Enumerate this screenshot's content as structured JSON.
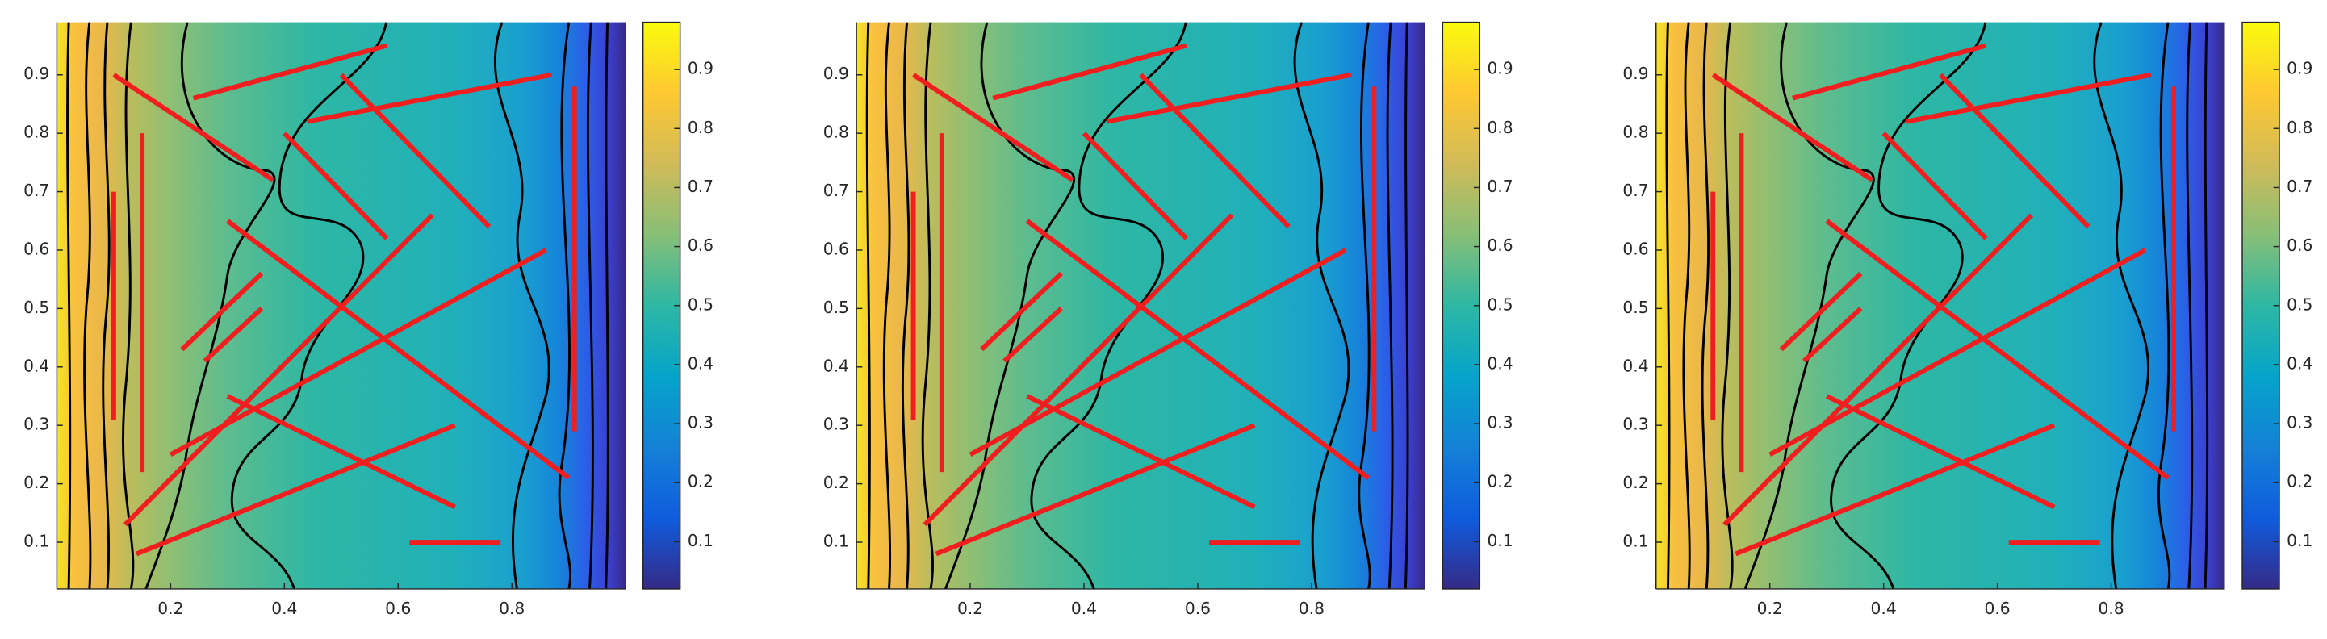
{
  "chart_data": [
    {
      "type": "field",
      "xlim": [
        0,
        1
      ],
      "ylim": [
        0.02,
        0.99
      ],
      "xticks": [
        0.2,
        0.4,
        0.6,
        0.8
      ],
      "yticks": [
        0.1,
        0.2,
        0.3,
        0.4,
        0.5,
        0.6,
        0.7,
        0.8,
        0.9
      ],
      "clim": [
        0.02,
        0.98
      ],
      "cticks": [
        0.1,
        0.2,
        0.3,
        0.4,
        0.5,
        0.6,
        0.7,
        0.8,
        0.9
      ],
      "segment_color": "#f01e1e",
      "segments": [
        {
          "x": [
            0.1,
            0.38
          ],
          "y": [
            0.9,
            0.72
          ]
        },
        {
          "x": [
            0.24,
            0.58
          ],
          "y": [
            0.86,
            0.95
          ]
        },
        {
          "x": [
            0.44,
            0.87
          ],
          "y": [
            0.82,
            0.9
          ]
        },
        {
          "x": [
            0.5,
            0.76
          ],
          "y": [
            0.9,
            0.64
          ]
        },
        {
          "x": [
            0.4,
            0.58
          ],
          "y": [
            0.8,
            0.62
          ]
        },
        {
          "x": [
            0.1,
            0.1
          ],
          "y": [
            0.7,
            0.31
          ]
        },
        {
          "x": [
            0.15,
            0.15
          ],
          "y": [
            0.8,
            0.22
          ]
        },
        {
          "x": [
            0.91,
            0.91
          ],
          "y": [
            0.88,
            0.29
          ]
        },
        {
          "x": [
            0.3,
            0.9
          ],
          "y": [
            0.65,
            0.21
          ]
        },
        {
          "x": [
            0.22,
            0.36
          ],
          "y": [
            0.43,
            0.56
          ]
        },
        {
          "x": [
            0.26,
            0.36
          ],
          "y": [
            0.41,
            0.5
          ]
        },
        {
          "x": [
            0.2,
            0.86
          ],
          "y": [
            0.25,
            0.6
          ]
        },
        {
          "x": [
            0.12,
            0.66
          ],
          "y": [
            0.13,
            0.66
          ]
        },
        {
          "x": [
            0.3,
            0.7
          ],
          "y": [
            0.35,
            0.16
          ]
        },
        {
          "x": [
            0.14,
            0.7
          ],
          "y": [
            0.08,
            0.3
          ]
        },
        {
          "x": [
            0.62,
            0.78
          ],
          "y": [
            0.1,
            0.1
          ]
        }
      ]
    },
    {
      "type": "field",
      "xlim": [
        0,
        1
      ],
      "ylim": [
        0.02,
        0.99
      ],
      "xticks": [
        0.2,
        0.4,
        0.6,
        0.8
      ],
      "yticks": [
        0.1,
        0.2,
        0.3,
        0.4,
        0.5,
        0.6,
        0.7,
        0.8,
        0.9
      ],
      "clim": [
        0.02,
        0.98
      ],
      "cticks": [
        0.1,
        0.2,
        0.3,
        0.4,
        0.5,
        0.6,
        0.7,
        0.8,
        0.9
      ],
      "segment_color": "#f01e1e",
      "segments": [
        {
          "x": [
            0.1,
            0.38
          ],
          "y": [
            0.9,
            0.72
          ]
        },
        {
          "x": [
            0.24,
            0.58
          ],
          "y": [
            0.86,
            0.95
          ]
        },
        {
          "x": [
            0.44,
            0.87
          ],
          "y": [
            0.82,
            0.9
          ]
        },
        {
          "x": [
            0.5,
            0.76
          ],
          "y": [
            0.9,
            0.64
          ]
        },
        {
          "x": [
            0.4,
            0.58
          ],
          "y": [
            0.8,
            0.62
          ]
        },
        {
          "x": [
            0.1,
            0.1
          ],
          "y": [
            0.7,
            0.31
          ]
        },
        {
          "x": [
            0.15,
            0.15
          ],
          "y": [
            0.8,
            0.22
          ]
        },
        {
          "x": [
            0.91,
            0.91
          ],
          "y": [
            0.88,
            0.29
          ]
        },
        {
          "x": [
            0.3,
            0.9
          ],
          "y": [
            0.65,
            0.21
          ]
        },
        {
          "x": [
            0.22,
            0.36
          ],
          "y": [
            0.43,
            0.56
          ]
        },
        {
          "x": [
            0.26,
            0.36
          ],
          "y": [
            0.41,
            0.5
          ]
        },
        {
          "x": [
            0.2,
            0.86
          ],
          "y": [
            0.25,
            0.6
          ]
        },
        {
          "x": [
            0.12,
            0.66
          ],
          "y": [
            0.13,
            0.66
          ]
        },
        {
          "x": [
            0.3,
            0.7
          ],
          "y": [
            0.35,
            0.16
          ]
        },
        {
          "x": [
            0.14,
            0.7
          ],
          "y": [
            0.08,
            0.3
          ]
        },
        {
          "x": [
            0.62,
            0.78
          ],
          "y": [
            0.1,
            0.1
          ]
        }
      ]
    },
    {
      "type": "field",
      "xlim": [
        0,
        1
      ],
      "ylim": [
        0.02,
        0.99
      ],
      "xticks": [
        0.2,
        0.4,
        0.6,
        0.8
      ],
      "yticks": [
        0.1,
        0.2,
        0.3,
        0.4,
        0.5,
        0.6,
        0.7,
        0.8,
        0.9
      ],
      "clim": [
        0.02,
        0.98
      ],
      "cticks": [
        0.1,
        0.2,
        0.3,
        0.4,
        0.5,
        0.6,
        0.7,
        0.8,
        0.9
      ],
      "segment_color": "#f01e1e",
      "segments": [
        {
          "x": [
            0.1,
            0.38
          ],
          "y": [
            0.9,
            0.72
          ]
        },
        {
          "x": [
            0.24,
            0.58
          ],
          "y": [
            0.86,
            0.95
          ]
        },
        {
          "x": [
            0.44,
            0.87
          ],
          "y": [
            0.82,
            0.9
          ]
        },
        {
          "x": [
            0.5,
            0.76
          ],
          "y": [
            0.9,
            0.64
          ]
        },
        {
          "x": [
            0.4,
            0.58
          ],
          "y": [
            0.8,
            0.62
          ]
        },
        {
          "x": [
            0.1,
            0.1
          ],
          "y": [
            0.7,
            0.31
          ]
        },
        {
          "x": [
            0.15,
            0.15
          ],
          "y": [
            0.8,
            0.22
          ]
        },
        {
          "x": [
            0.91,
            0.91
          ],
          "y": [
            0.88,
            0.29
          ]
        },
        {
          "x": [
            0.3,
            0.9
          ],
          "y": [
            0.65,
            0.21
          ]
        },
        {
          "x": [
            0.22,
            0.36
          ],
          "y": [
            0.43,
            0.56
          ]
        },
        {
          "x": [
            0.26,
            0.36
          ],
          "y": [
            0.41,
            0.5
          ]
        },
        {
          "x": [
            0.2,
            0.86
          ],
          "y": [
            0.25,
            0.6
          ]
        },
        {
          "x": [
            0.12,
            0.66
          ],
          "y": [
            0.13,
            0.66
          ]
        },
        {
          "x": [
            0.3,
            0.7
          ],
          "y": [
            0.35,
            0.16
          ]
        },
        {
          "x": [
            0.14,
            0.7
          ],
          "y": [
            0.08,
            0.3
          ]
        },
        {
          "x": [
            0.62,
            0.78
          ],
          "y": [
            0.1,
            0.1
          ]
        }
      ]
    }
  ]
}
